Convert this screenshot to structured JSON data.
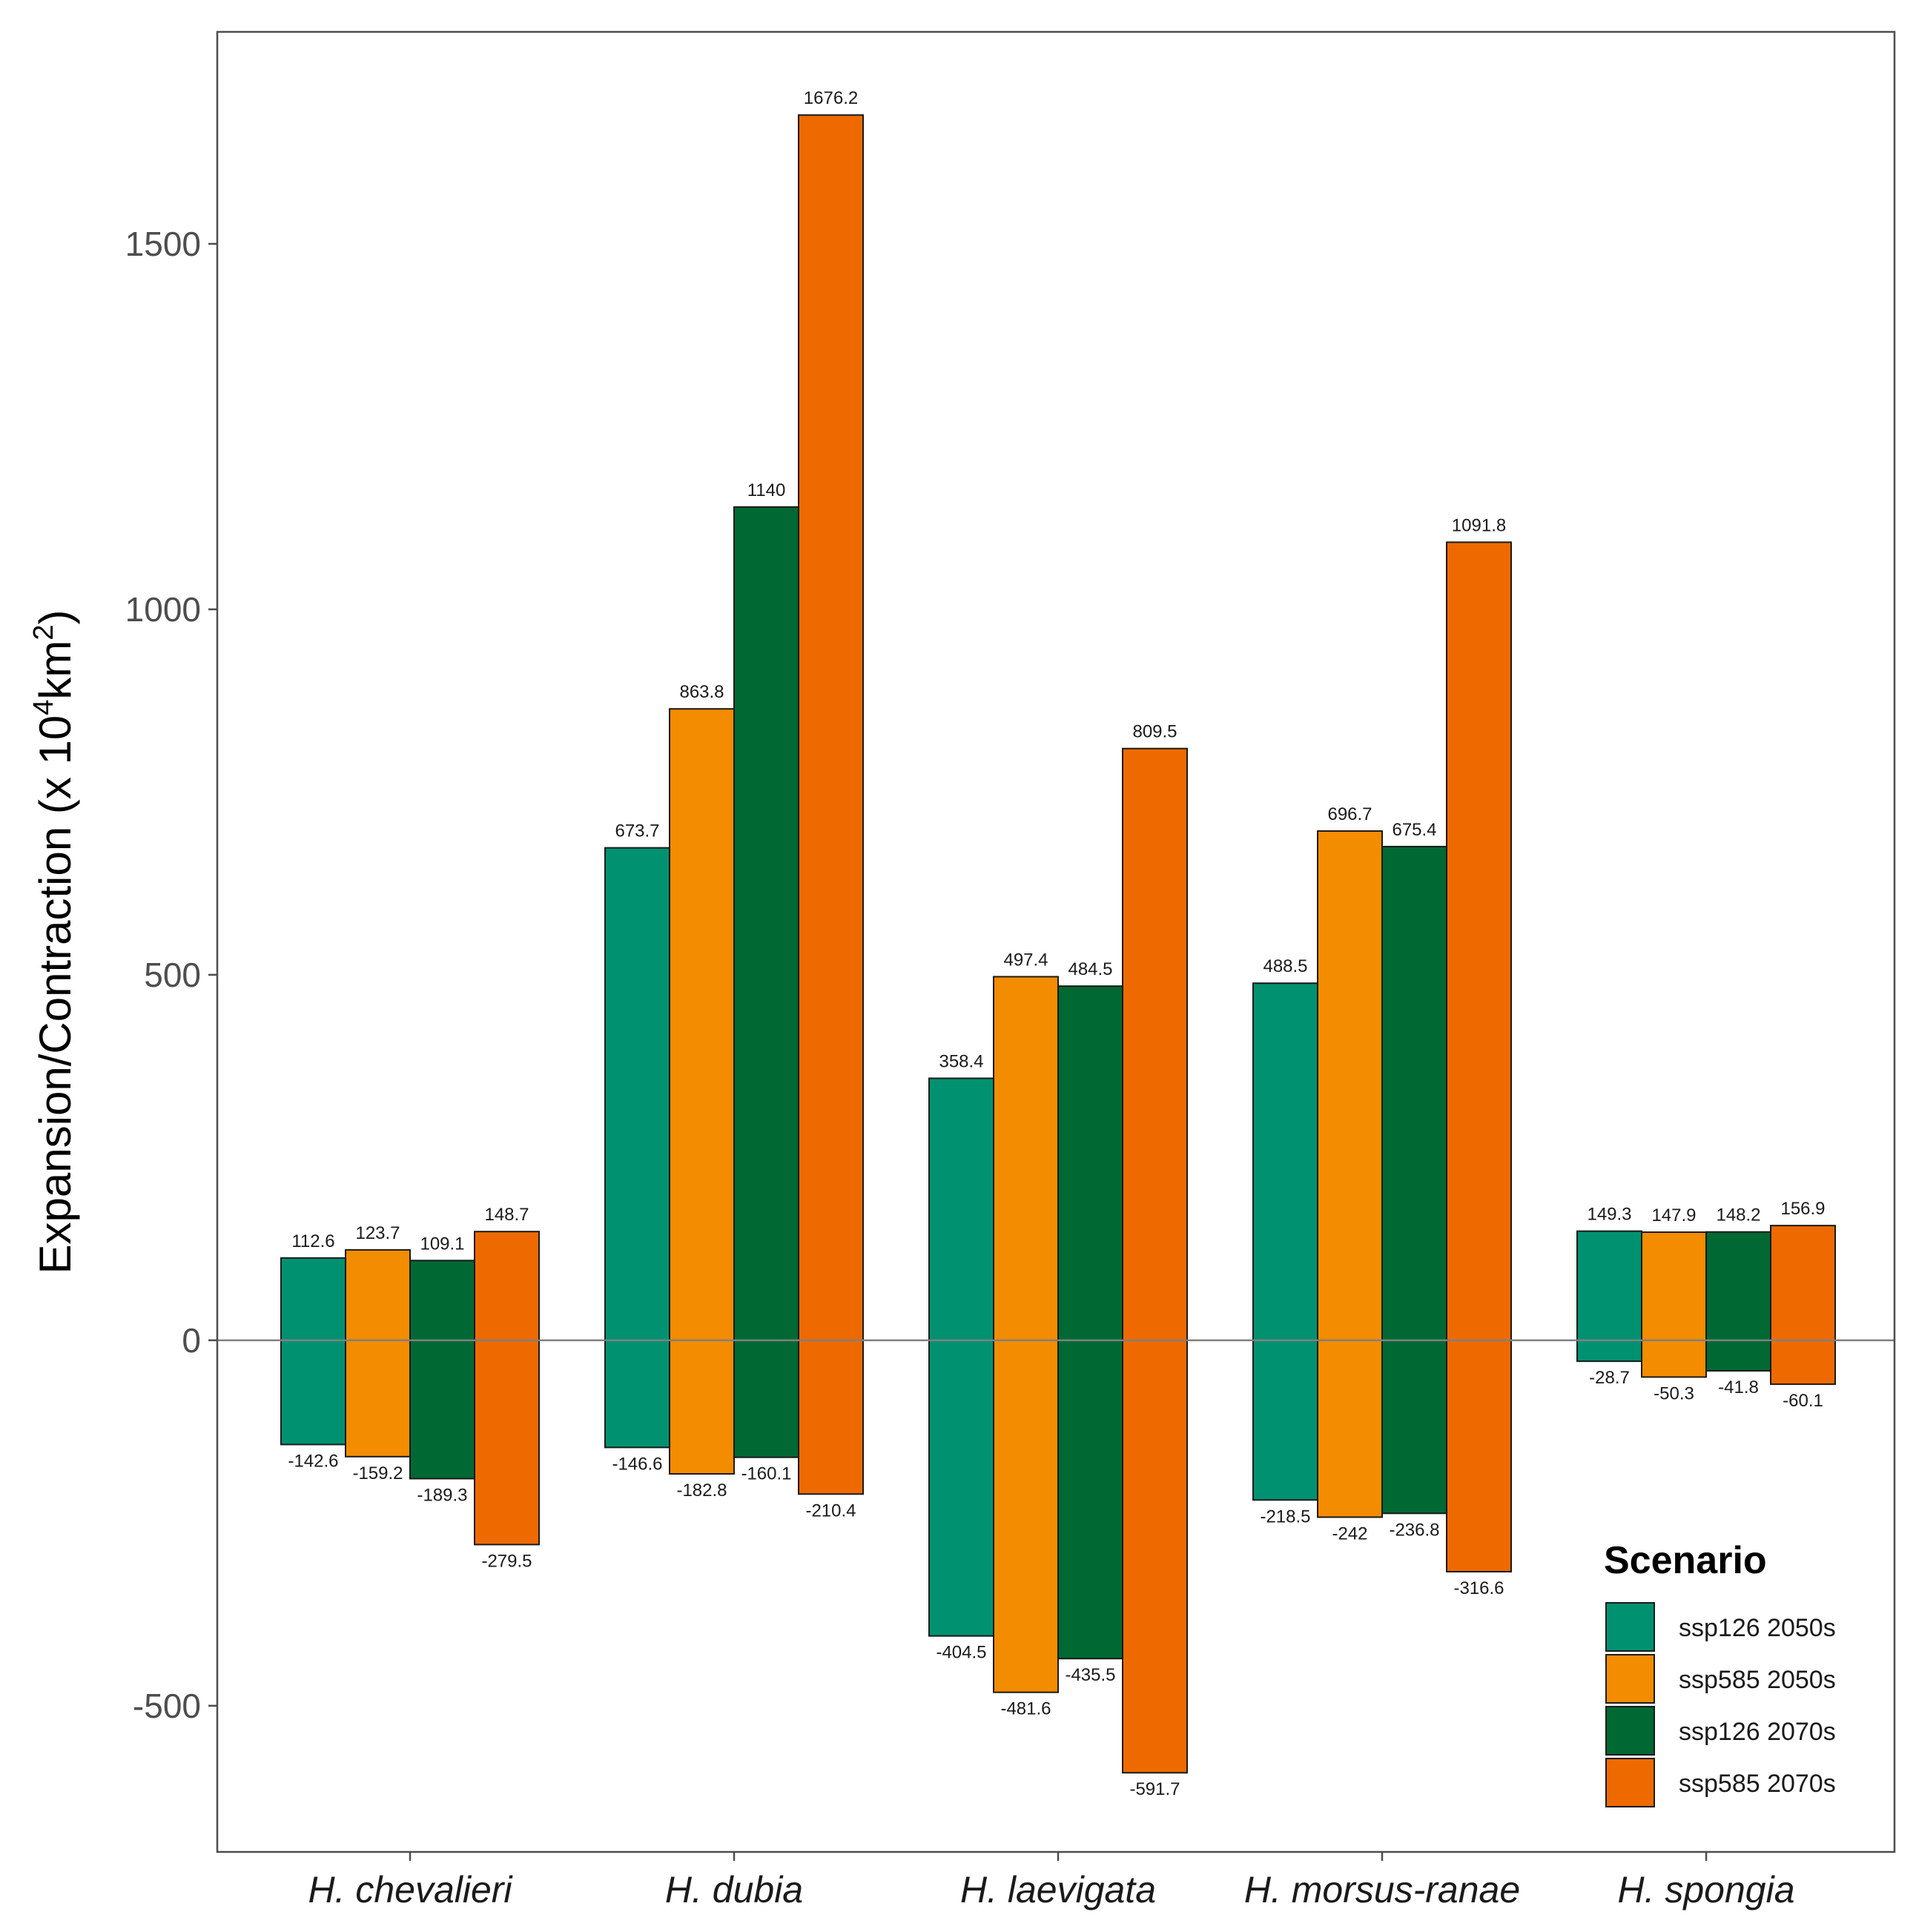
{
  "chart_data": {
    "type": "bar",
    "ylabel": "Expansion/Contraction (x 10",
    "ylabel_sup1": "4",
    "ylabel_unit": "km",
    "ylabel_sup2": "2",
    "ylabel_close": ")",
    "ylim": [
      -700,
      1790
    ],
    "yticks": [
      -500,
      0,
      500,
      1000,
      1500
    ],
    "ytick_labels": [
      "-500",
      "0",
      "500",
      "1000",
      "1500"
    ],
    "grid": false,
    "legend_position": "bottom-right",
    "legend_title": "Scenario",
    "categories": [
      "H. chevalieri",
      "H. dubia",
      "H. laevigata",
      "H. morsus-ranae",
      "H. spongia"
    ],
    "series": [
      {
        "name": "ssp126 2050s",
        "color": "#009270",
        "expansion": [
          112.6,
          673.7,
          358.4,
          488.5,
          149.3
        ],
        "expansion_labels": [
          "112.6",
          "673.7",
          "358.4",
          "488.5",
          "149.3"
        ],
        "contraction": [
          -142.6,
          -146.6,
          -404.5,
          -218.5,
          -28.7
        ],
        "contraction_labels": [
          "-142.6",
          "-146.6",
          "-404.5",
          "-218.5",
          "-28.7"
        ]
      },
      {
        "name": "ssp585 2050s",
        "color": "#F48C00",
        "expansion": [
          123.7,
          863.8,
          497.4,
          696.7,
          147.9
        ],
        "expansion_labels": [
          "123.7",
          "863.8",
          "497.4",
          "696.7",
          "147.9"
        ],
        "contraction": [
          -159.2,
          -182.8,
          -481.6,
          -242,
          -50.3
        ],
        "contraction_labels": [
          "-159.2",
          "-182.8",
          "-481.6",
          "-242",
          "-50.3"
        ]
      },
      {
        "name": "ssp126 2070s",
        "color": "#006933",
        "expansion": [
          109.1,
          1140,
          484.5,
          675.4,
          148.2
        ],
        "expansion_labels": [
          "109.1",
          "1140",
          "484.5",
          "675.4",
          "148.2"
        ],
        "contraction": [
          -189.3,
          -160.1,
          -435.5,
          -236.8,
          -41.8
        ],
        "contraction_labels": [
          "-189.3",
          "-160.1",
          "-435.5",
          "-236.8",
          "-41.8"
        ]
      },
      {
        "name": "ssp585 2070s",
        "color": "#EE6A00",
        "expansion": [
          148.7,
          1676.2,
          809.5,
          1091.8,
          156.9
        ],
        "expansion_labels": [
          "148.7",
          "1676.2",
          "809.5",
          "1091.8",
          "156.9"
        ],
        "contraction": [
          -279.5,
          -210.4,
          -591.7,
          -316.6,
          -60.1
        ],
        "contraction_labels": [
          "-279.5",
          "-210.4",
          "-591.7",
          "-316.6",
          "-60.1"
        ]
      }
    ]
  }
}
